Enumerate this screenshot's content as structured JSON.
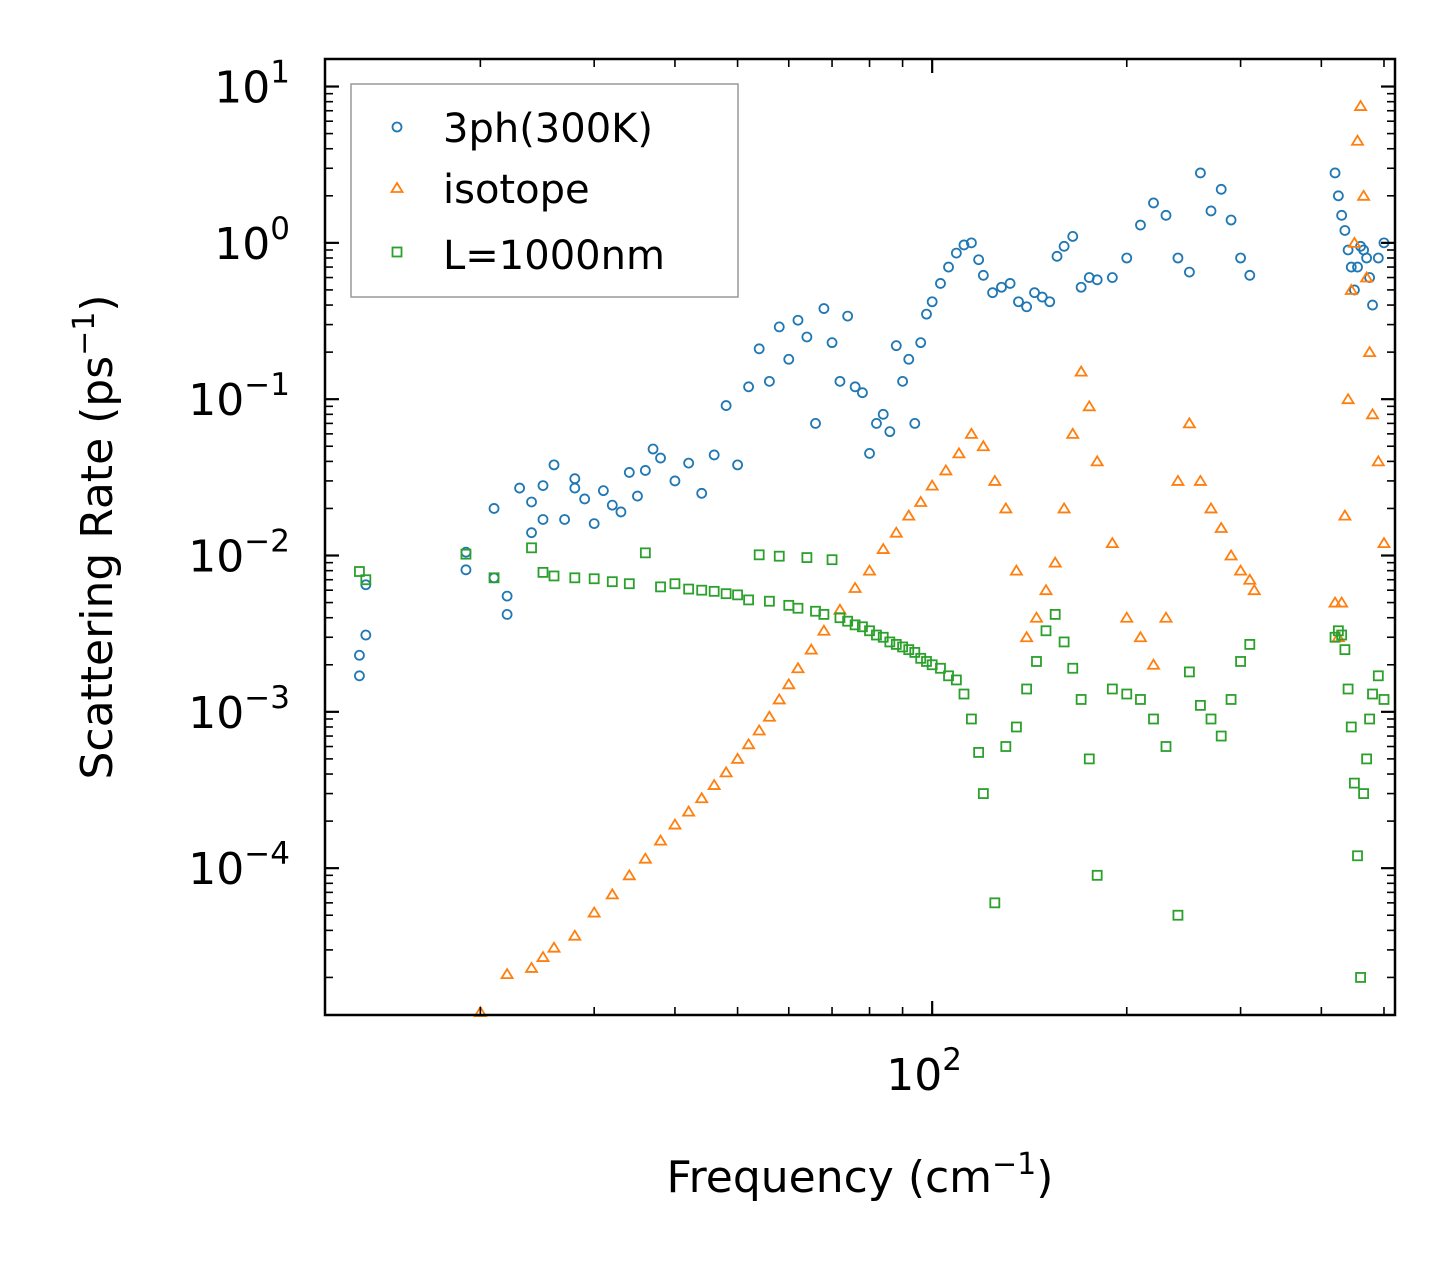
{
  "chart_data": {
    "type": "scatter",
    "title": "",
    "xlabel": "Frequency (cm",
    "xlabel_sup": "−1",
    "xlabel_end": ")",
    "ylabel": "Scattering Rate (ps",
    "ylabel_sup": "−1",
    "ylabel_end": ")",
    "xscale": "log",
    "yscale": "log",
    "xlim": [
      11.5,
      520
    ],
    "ylim": [
      1.15e-05,
      15
    ],
    "x_tick_labels": [
      {
        "value": 100,
        "base": "10",
        "exp": "2"
      }
    ],
    "y_tick_labels": [
      {
        "value": 10,
        "base": "10",
        "exp": "1"
      },
      {
        "value": 1,
        "base": "10",
        "exp": "0"
      },
      {
        "value": 0.1,
        "base": "10",
        "exp": "−1"
      },
      {
        "value": 0.01,
        "base": "10",
        "exp": "−2"
      },
      {
        "value": 0.001,
        "base": "10",
        "exp": "−3"
      },
      {
        "value": 0.0001,
        "base": "10",
        "exp": "−4"
      }
    ],
    "legend_position": "top-left",
    "series": [
      {
        "name": "3ph(300K)",
        "marker": "circle",
        "color": "#1f77b4",
        "x": [
          13,
          13,
          13.3,
          13.3,
          19,
          19,
          21,
          21,
          22,
          22,
          23,
          24,
          24,
          25,
          25,
          26,
          27,
          28,
          28,
          29,
          30,
          31,
          32,
          33,
          34,
          35,
          36,
          37,
          38,
          40,
          42,
          44,
          46,
          48,
          50,
          52,
          54,
          56,
          58,
          60,
          62,
          64,
          66,
          68,
          70,
          72,
          74,
          76,
          78,
          80,
          82,
          84,
          86,
          88,
          90,
          92,
          94,
          96,
          98,
          100,
          103,
          106,
          109,
          112,
          115,
          118,
          120,
          124,
          128,
          132,
          136,
          140,
          144,
          148,
          152,
          156,
          160,
          165,
          170,
          175,
          180,
          190,
          200,
          210,
          220,
          230,
          240,
          250,
          260,
          270,
          280,
          290,
          300,
          310,
          420,
          425,
          430,
          435,
          440,
          445,
          450,
          455,
          460,
          465,
          470,
          475,
          480,
          490,
          500
        ],
        "y": [
          0.0017,
          0.0023,
          0.0065,
          0.0031,
          0.0081,
          0.0105,
          0.0072,
          0.02,
          0.0055,
          0.0042,
          0.027,
          0.022,
          0.014,
          0.017,
          0.028,
          0.038,
          0.017,
          0.027,
          0.031,
          0.023,
          0.016,
          0.026,
          0.021,
          0.019,
          0.034,
          0.024,
          0.035,
          0.048,
          0.042,
          0.03,
          0.039,
          0.025,
          0.044,
          0.091,
          0.038,
          0.12,
          0.21,
          0.13,
          0.29,
          0.18,
          0.32,
          0.25,
          0.07,
          0.38,
          0.23,
          0.13,
          0.34,
          0.12,
          0.11,
          0.045,
          0.07,
          0.08,
          0.062,
          0.22,
          0.13,
          0.18,
          0.07,
          0.23,
          0.35,
          0.42,
          0.55,
          0.7,
          0.86,
          0.97,
          1.0,
          0.78,
          0.62,
          0.48,
          0.52,
          0.55,
          0.42,
          0.39,
          0.48,
          0.45,
          0.42,
          0.82,
          0.95,
          1.1,
          0.52,
          0.6,
          0.58,
          0.6,
          0.8,
          1.3,
          1.8,
          1.5,
          0.8,
          0.65,
          2.8,
          1.6,
          2.2,
          1.4,
          0.8,
          0.62,
          2.8,
          2.0,
          1.5,
          1.2,
          0.9,
          0.7,
          0.5,
          0.7,
          0.95,
          0.9,
          0.8,
          0.6,
          0.4,
          0.8,
          1.0
        ]
      },
      {
        "name": "isotope",
        "marker": "triangle",
        "color": "#ff7f0e",
        "x": [
          20,
          22,
          24,
          25,
          26,
          28,
          30,
          32,
          34,
          36,
          38,
          40,
          42,
          44,
          46,
          48,
          50,
          52,
          54,
          56,
          58,
          60,
          62,
          65,
          68,
          72,
          76,
          80,
          84,
          88,
          92,
          96,
          100,
          105,
          110,
          115,
          120,
          125,
          130,
          135,
          140,
          145,
          150,
          155,
          160,
          165,
          170,
          175,
          180,
          190,
          200,
          210,
          220,
          230,
          240,
          250,
          260,
          270,
          280,
          290,
          300,
          310,
          315,
          420,
          425,
          430,
          435,
          440,
          445,
          450,
          455,
          460,
          465,
          470,
          475,
          480,
          490,
          500
        ],
        "y": [
          1.2e-05,
          2.1e-05,
          2.3e-05,
          2.7e-05,
          3.1e-05,
          3.7e-05,
          5.2e-05,
          6.8e-05,
          9e-05,
          0.000115,
          0.00015,
          0.00019,
          0.00023,
          0.00028,
          0.00034,
          0.00041,
          0.0005,
          0.00062,
          0.00076,
          0.00093,
          0.0012,
          0.0015,
          0.0019,
          0.0025,
          0.0033,
          0.0045,
          0.0062,
          0.008,
          0.011,
          0.014,
          0.018,
          0.022,
          0.028,
          0.035,
          0.045,
          0.06,
          0.05,
          0.03,
          0.02,
          0.008,
          0.003,
          0.004,
          0.006,
          0.009,
          0.02,
          0.06,
          0.15,
          0.09,
          0.04,
          0.012,
          0.004,
          0.003,
          0.002,
          0.004,
          0.03,
          0.07,
          0.03,
          0.02,
          0.015,
          0.01,
          0.008,
          0.007,
          0.006,
          0.005,
          0.003,
          0.005,
          0.018,
          0.1,
          0.5,
          1.0,
          4.5,
          7.5,
          2.0,
          0.6,
          0.2,
          0.08,
          0.04,
          0.012
        ]
      },
      {
        "name": "L=1000nm",
        "marker": "square",
        "color": "#2ca02c",
        "x": [
          13,
          13.3,
          19,
          21,
          24,
          25,
          26,
          28,
          30,
          32,
          34,
          36,
          38,
          40,
          42,
          44,
          46,
          48,
          50,
          52,
          54,
          56,
          58,
          60,
          62,
          64,
          66,
          68,
          70,
          72,
          74,
          76,
          78,
          80,
          82,
          84,
          86,
          88,
          90,
          92,
          94,
          96,
          98,
          100,
          103,
          106,
          109,
          112,
          115,
          118,
          120,
          125,
          130,
          135,
          140,
          145,
          150,
          155,
          160,
          165,
          170,
          175,
          180,
          190,
          200,
          210,
          220,
          230,
          240,
          250,
          260,
          270,
          280,
          290,
          300,
          310,
          420,
          425,
          430,
          435,
          440,
          445,
          450,
          455,
          460,
          465,
          470,
          475,
          480,
          490,
          500
        ],
        "y": [
          0.0079,
          0.007,
          0.0102,
          0.0072,
          0.0112,
          0.0078,
          0.0074,
          0.0072,
          0.0071,
          0.0068,
          0.0066,
          0.0104,
          0.0063,
          0.0066,
          0.0061,
          0.006,
          0.0059,
          0.0057,
          0.0056,
          0.0052,
          0.0101,
          0.0051,
          0.0099,
          0.0048,
          0.0046,
          0.0097,
          0.0044,
          0.0042,
          0.0094,
          0.004,
          0.0038,
          0.0036,
          0.0035,
          0.0033,
          0.0031,
          0.003,
          0.0028,
          0.0027,
          0.0026,
          0.0025,
          0.0024,
          0.0022,
          0.0021,
          0.002,
          0.0019,
          0.0017,
          0.0016,
          0.0013,
          0.0009,
          0.00055,
          0.0003,
          6e-05,
          0.0006,
          0.0008,
          0.0014,
          0.0021,
          0.0033,
          0.0042,
          0.0028,
          0.0019,
          0.0012,
          0.0005,
          9e-05,
          0.0014,
          0.0013,
          0.0012,
          0.0009,
          0.0006,
          5e-05,
          0.0018,
          0.0011,
          0.0009,
          0.0007,
          0.0012,
          0.0021,
          0.0027,
          0.003,
          0.0033,
          0.0031,
          0.0025,
          0.0014,
          0.0008,
          0.00035,
          0.00012,
          2e-05,
          0.0003,
          0.0005,
          0.0009,
          0.0013,
          0.0017,
          0.0012
        ]
      }
    ]
  }
}
